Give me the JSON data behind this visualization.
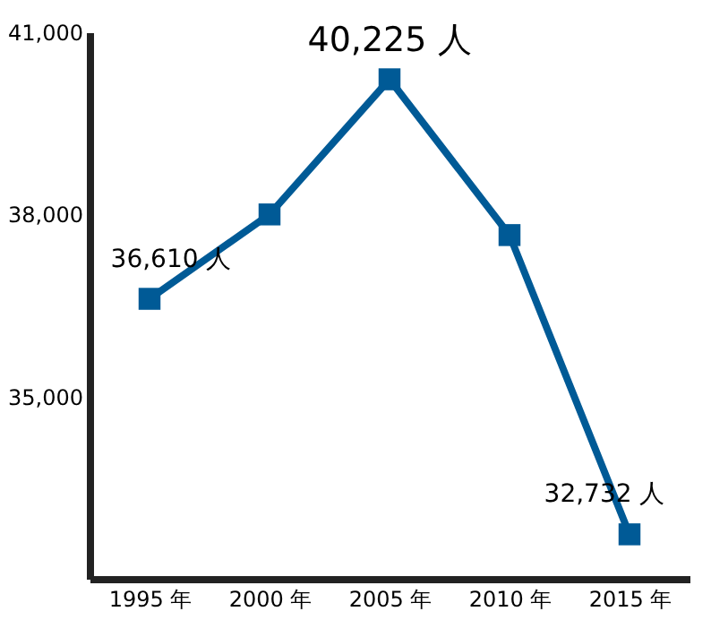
{
  "chart_data": {
    "type": "line",
    "categories": [
      "1995 年",
      "2000 年",
      "2005 年",
      "2010 年",
      "2015 年"
    ],
    "series": [
      {
        "color": "#005a96",
        "values": [
          36610,
          38000,
          40225,
          37660,
          32732
        ],
        "value_labels": [
          "36,610 人",
          null,
          "40,225 人",
          null,
          "32,732 人"
        ]
      }
    ],
    "ylim": [
      32000,
      41000
    ],
    "yticks": [
      {
        "value": 35000,
        "label": "35,000"
      },
      {
        "value": 38000,
        "label": "38,000"
      },
      {
        "value": 41000,
        "label": "41,000"
      }
    ],
    "grid": false,
    "marker": "square",
    "line_style": "solid"
  }
}
